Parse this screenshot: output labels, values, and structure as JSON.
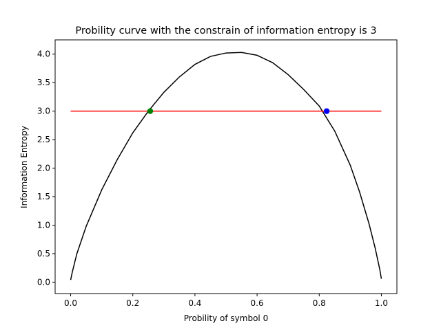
{
  "chart_data": {
    "type": "line",
    "title": "Probility curve with the constrain of information entropy is 3",
    "xlabel": "Probility of symbol 0",
    "ylabel": "Information Entropy",
    "xlim": [
      -0.05,
      1.05
    ],
    "ylim": [
      -0.2,
      4.25
    ],
    "xticks": [
      "0.0",
      "0.2",
      "0.4",
      "0.6",
      "0.8",
      "1.0"
    ],
    "yticks": [
      "0.0",
      "0.5",
      "1.0",
      "1.5",
      "2.0",
      "2.5",
      "3.0",
      "3.5",
      "4.0"
    ],
    "grid": false,
    "series": [
      {
        "color": "#000000",
        "x": [
          0.0,
          0.005,
          0.02,
          0.05,
          0.1,
          0.15,
          0.2,
          0.25,
          0.3,
          0.35,
          0.4,
          0.45,
          0.5,
          0.55,
          0.6,
          0.65,
          0.7,
          0.75,
          0.8,
          0.85,
          0.9,
          0.93,
          0.96,
          0.98,
          0.995,
          1.0
        ],
        "y": [
          0.04,
          0.17,
          0.5,
          0.98,
          1.62,
          2.15,
          2.62,
          3.0,
          3.33,
          3.6,
          3.82,
          3.96,
          4.02,
          4.03,
          3.98,
          3.85,
          3.64,
          3.38,
          3.09,
          2.65,
          2.05,
          1.58,
          1.03,
          0.6,
          0.22,
          0.06
        ]
      },
      {
        "color": "#ff0000",
        "x": [
          0.0,
          1.0
        ],
        "y": [
          3.0,
          3.0
        ]
      }
    ],
    "points": [
      {
        "x": 0.256,
        "y": 3.0,
        "color": "#008000"
      },
      {
        "x": 0.824,
        "y": 3.0,
        "color": "#0000ff"
      }
    ]
  }
}
